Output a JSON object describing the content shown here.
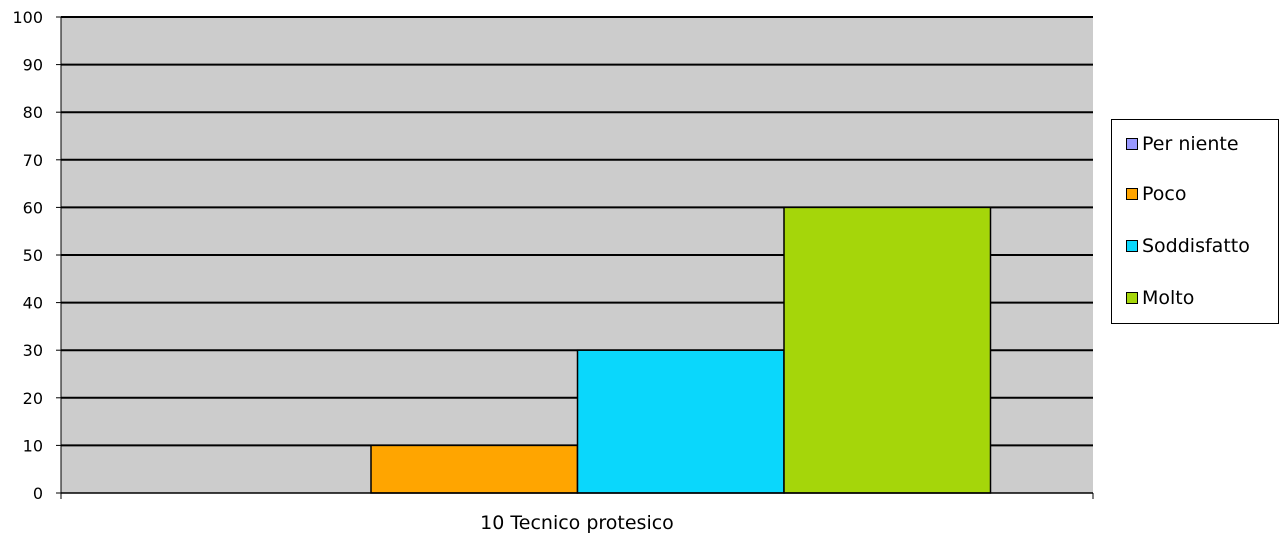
{
  "chart_data": {
    "type": "bar",
    "categories": [
      "10 Tecnico protesico"
    ],
    "series": [
      {
        "name": "Per niente",
        "values": [
          0
        ],
        "color": "#9999ff"
      },
      {
        "name": "Poco",
        "values": [
          10
        ],
        "color": "#ffa500"
      },
      {
        "name": "Soddisfatto",
        "values": [
          30
        ],
        "color": "#0ad7fc"
      },
      {
        "name": "Molto",
        "values": [
          60
        ],
        "color": "#a5d60a"
      }
    ],
    "title": "",
    "xlabel": "",
    "ylabel": "",
    "ylim": [
      0,
      100
    ],
    "yticks": [
      "0",
      "10",
      "20",
      "30",
      "40",
      "50",
      "60",
      "70",
      "80",
      "90",
      "100"
    ],
    "grid": true,
    "plot_background": "#cccccc",
    "legend_position": "right"
  }
}
